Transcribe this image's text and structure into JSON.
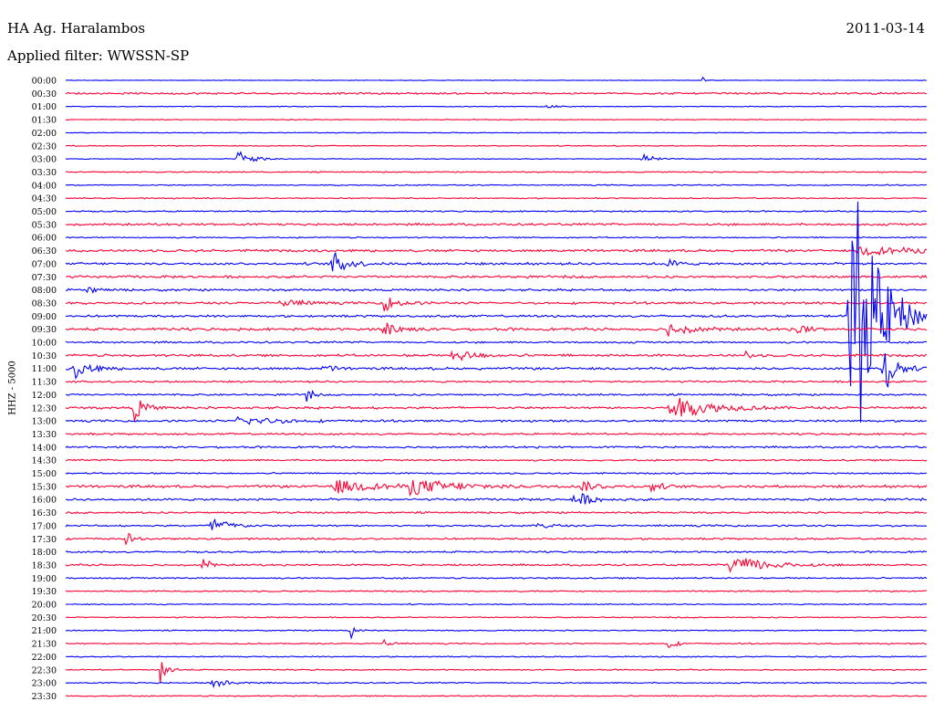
{
  "header": {
    "station": "HA Ag. Haralambos",
    "date": "2011-03-14",
    "filter": "Applied filter: WWSSN-SP"
  },
  "chart_data": {
    "type": "line",
    "ylabel": "HHZ - 5000",
    "colors": [
      "#0000ff",
      "#ff0033"
    ],
    "row_labels": [
      "00:00",
      "00:30",
      "01:00",
      "01:30",
      "02:00",
      "02:30",
      "03:00",
      "03:30",
      "04:00",
      "04:30",
      "05:00",
      "05:30",
      "06:00",
      "06:30",
      "07:00",
      "07:30",
      "08:00",
      "08:30",
      "09:00",
      "09:30",
      "10:00",
      "10:30",
      "11:00",
      "11:30",
      "12:00",
      "12:30",
      "13:00",
      "13:30",
      "14:00",
      "14:30",
      "15:00",
      "15:30",
      "16:00",
      "16:30",
      "17:00",
      "17:30",
      "18:00",
      "18:30",
      "19:00",
      "19:30",
      "20:00",
      "20:30",
      "21:00",
      "21:30",
      "22:00",
      "22:30",
      "23:00",
      "23:30"
    ],
    "noise_level": [
      0.3,
      1,
      0.4,
      0.4,
      0.4,
      0.5,
      0.4,
      0.6,
      0.6,
      0.6,
      0.7,
      1.2,
      0.7,
      1.3,
      1.3,
      1.3,
      1.2,
      1.2,
      1.2,
      1.4,
      1,
      1.3,
      1.3,
      1,
      1,
      1.3,
      1.1,
      1,
      1,
      0.9,
      0.8,
      1.4,
      1.2,
      1,
      1,
      1,
      0.9,
      1,
      0.8,
      0.7,
      0.6,
      0.6,
      0.6,
      0.7,
      0.6,
      0.6,
      0.7,
      0.6
    ],
    "events": [
      {
        "row": 0,
        "x": 0.74,
        "amp": 4,
        "dur": 0.002
      },
      {
        "row": 2,
        "x": 0.56,
        "amp": 2,
        "dur": 0.01
      },
      {
        "row": 6,
        "x": 0.2,
        "amp": 10,
        "dur": 0.015
      },
      {
        "row": 6,
        "x": 0.67,
        "amp": 6,
        "dur": 0.012
      },
      {
        "row": 13,
        "x": 0.92,
        "amp": 5,
        "dur": 0.06
      },
      {
        "row": 14,
        "x": 0.31,
        "amp": 14,
        "dur": 0.015
      },
      {
        "row": 14,
        "x": 0.7,
        "amp": 5,
        "dur": 0.01
      },
      {
        "row": 16,
        "x": 0.025,
        "amp": 5,
        "dur": 0.008
      },
      {
        "row": 17,
        "x": 0.25,
        "amp": 6,
        "dur": 0.02
      },
      {
        "row": 17,
        "x": 0.37,
        "amp": 9,
        "dur": 0.015
      },
      {
        "row": 18,
        "x": 0.91,
        "amp": 200,
        "dur": 0.025
      },
      {
        "row": 18,
        "x": 0.96,
        "amp": 10,
        "dur": 0.01
      },
      {
        "row": 19,
        "x": 0.37,
        "amp": 9,
        "dur": 0.015
      },
      {
        "row": 19,
        "x": 0.7,
        "amp": 7,
        "dur": 0.025
      },
      {
        "row": 19,
        "x": 0.85,
        "amp": 7,
        "dur": 0.01
      },
      {
        "row": 21,
        "x": 0.45,
        "amp": 8,
        "dur": 0.02
      },
      {
        "row": 21,
        "x": 0.79,
        "amp": 6,
        "dur": 0.005
      },
      {
        "row": 22,
        "x": 0.01,
        "amp": 12,
        "dur": 0.015
      },
      {
        "row": 22,
        "x": 0.3,
        "amp": 5,
        "dur": 0.01
      },
      {
        "row": 22,
        "x": 0.95,
        "amp": 30,
        "dur": 0.012
      },
      {
        "row": 24,
        "x": 0.28,
        "amp": 10,
        "dur": 0.005
      },
      {
        "row": 25,
        "x": 0.08,
        "amp": 14,
        "dur": 0.01
      },
      {
        "row": 25,
        "x": 0.7,
        "amp": 14,
        "dur": 0.04
      },
      {
        "row": 26,
        "x": 0.2,
        "amp": 5,
        "dur": 0.04
      },
      {
        "row": 31,
        "x": 0.31,
        "amp": 8,
        "dur": 0.04
      },
      {
        "row": 31,
        "x": 0.4,
        "amp": 8,
        "dur": 0.05
      },
      {
        "row": 31,
        "x": 0.6,
        "amp": 6,
        "dur": 0.015
      },
      {
        "row": 31,
        "x": 0.68,
        "amp": 6,
        "dur": 0.01
      },
      {
        "row": 32,
        "x": 0.59,
        "amp": 11,
        "dur": 0.015
      },
      {
        "row": 34,
        "x": 0.17,
        "amp": 12,
        "dur": 0.015
      },
      {
        "row": 34,
        "x": 0.55,
        "amp": 5,
        "dur": 0.01
      },
      {
        "row": 35,
        "x": 0.07,
        "amp": 10,
        "dur": 0.005
      },
      {
        "row": 37,
        "x": 0.16,
        "amp": 10,
        "dur": 0.006
      },
      {
        "row": 37,
        "x": 0.77,
        "amp": 12,
        "dur": 0.035
      },
      {
        "row": 42,
        "x": 0.33,
        "amp": 12,
        "dur": 0.005
      },
      {
        "row": 43,
        "x": 0.37,
        "amp": 5,
        "dur": 0.008
      },
      {
        "row": 43,
        "x": 0.7,
        "amp": 6,
        "dur": 0.008
      },
      {
        "row": 45,
        "x": 0.11,
        "amp": 16,
        "dur": 0.008
      },
      {
        "row": 46,
        "x": 0.17,
        "amp": 6,
        "dur": 0.015
      }
    ]
  }
}
